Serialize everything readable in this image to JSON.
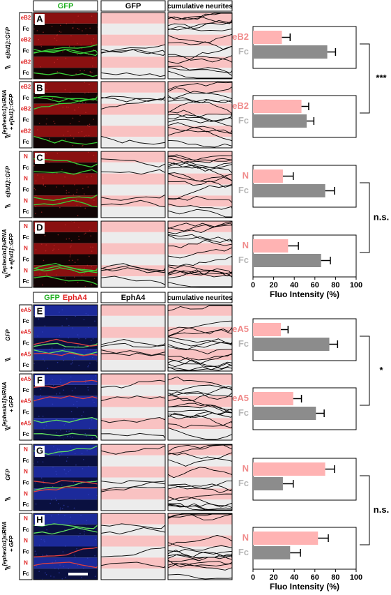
{
  "headers_top": [
    {
      "parts": [
        "GFP"
      ],
      "colors": [
        "#1fae1f"
      ]
    },
    {
      "parts": [
        "GFP"
      ],
      "colors": [
        "#000000"
      ]
    },
    {
      "parts": [
        "cumulative neurites"
      ],
      "colors": [
        "#000000"
      ]
    }
  ],
  "headers_bottom": [
    {
      "parts": [
        "GFP",
        "EphA4"
      ],
      "colors": [
        "#1fae1f",
        "#e02020"
      ]
    },
    {
      "parts": [
        "EphA4"
      ],
      "colors": [
        "#000000"
      ]
    },
    {
      "parts": [
        "cumulative neurites"
      ],
      "colors": [
        "#000000"
      ]
    }
  ],
  "panels": [
    {
      "letter": "A",
      "condition": [
        "e[Isl1]::GFP"
      ],
      "stripes": [
        "eB2",
        "Fc",
        "eB2",
        "Fc",
        "eB2",
        "Fc"
      ]
    },
    {
      "letter": "B",
      "condition": [
        "[ephexin1]siRNA",
        "+ e[Isl1]::GFP"
      ],
      "stripes": [
        "eB2",
        "Fc",
        "eB2",
        "Fc",
        "eB2",
        "Fc"
      ]
    },
    {
      "letter": "C",
      "condition": [
        "e[Isl1]::GFP"
      ],
      "stripes": [
        "N",
        "Fc",
        "N",
        "Fc",
        "N",
        "Fc"
      ]
    },
    {
      "letter": "D",
      "condition": [
        "[ephexin1]siRNA",
        "+ e[Isl1]::GFP"
      ],
      "stripes": [
        "N",
        "Fc",
        "N",
        "Fc",
        "N",
        "Fc"
      ]
    },
    {
      "letter": "E",
      "condition": [
        "GFP"
      ],
      "stripes": [
        "eA5",
        "Fc",
        "eA5",
        "Fc",
        "eA5",
        "Fc"
      ]
    },
    {
      "letter": "F",
      "condition": [
        "[ephexin1]siRNA",
        "+ GFP"
      ],
      "stripes": [
        "eA5",
        "Fc",
        "eA5",
        "Fc",
        "eA5",
        "Fc"
      ]
    },
    {
      "letter": "G",
      "condition": [
        "GFP"
      ],
      "stripes": [
        "N",
        "Fc",
        "N",
        "Fc",
        "N",
        "Fc"
      ]
    },
    {
      "letter": "H",
      "condition": [
        "[ephexin1]siRNA",
        "+ GFP"
      ],
      "stripes": [
        "N",
        "Fc",
        "N",
        "Fc",
        "N",
        "Fc"
      ]
    }
  ],
  "significance": [
    "***",
    "n.s.",
    "*",
    "n.s."
  ],
  "chart_data": [
    {
      "type": "hbar",
      "categories": [
        "eB2",
        "Fc"
      ],
      "values": [
        28,
        72
      ],
      "errors": [
        8,
        8
      ],
      "colors": [
        "#ffb3b3",
        "#8c8c8c"
      ],
      "label_colors": [
        "#f08a8a",
        "#b5b5b5"
      ],
      "xlim": [
        0,
        100
      ]
    },
    {
      "type": "hbar",
      "categories": [
        "eB2",
        "Fc"
      ],
      "values": [
        47,
        52
      ],
      "errors": [
        7,
        7
      ],
      "colors": [
        "#ffb3b3",
        "#8c8c8c"
      ],
      "label_colors": [
        "#f08a8a",
        "#b5b5b5"
      ],
      "xlim": [
        0,
        100
      ]
    },
    {
      "type": "hbar",
      "categories": [
        "N",
        "Fc"
      ],
      "values": [
        29,
        70
      ],
      "errors": [
        10,
        9
      ],
      "colors": [
        "#ffb3b3",
        "#8c8c8c"
      ],
      "label_colors": [
        "#f08a8a",
        "#b5b5b5"
      ],
      "xlim": [
        0,
        100
      ]
    },
    {
      "type": "hbar",
      "categories": [
        "N",
        "Fc"
      ],
      "values": [
        34,
        66
      ],
      "errors": [
        10,
        9
      ],
      "colors": [
        "#ffb3b3",
        "#8c8c8c"
      ],
      "label_colors": [
        "#f08a8a",
        "#b5b5b5"
      ],
      "xlim": [
        0,
        100
      ],
      "xticks": [
        0,
        20,
        40,
        60,
        80,
        100
      ],
      "xlabel": "Fluo Intensity (%)"
    },
    {
      "type": "hbar",
      "categories": [
        "eA5",
        "Fc"
      ],
      "values": [
        27,
        74
      ],
      "errors": [
        7,
        8
      ],
      "colors": [
        "#ffb3b3",
        "#8c8c8c"
      ],
      "label_colors": [
        "#f08a8a",
        "#b5b5b5"
      ],
      "xlim": [
        0,
        100
      ]
    },
    {
      "type": "hbar",
      "categories": [
        "eA5",
        "Fc"
      ],
      "values": [
        39,
        61
      ],
      "errors": [
        8,
        8
      ],
      "colors": [
        "#ffb3b3",
        "#8c8c8c"
      ],
      "label_colors": [
        "#f08a8a",
        "#b5b5b5"
      ],
      "xlim": [
        0,
        100
      ]
    },
    {
      "type": "hbar",
      "categories": [
        "N",
        "Fc"
      ],
      "values": [
        70,
        29
      ],
      "errors": [
        9,
        10
      ],
      "colors": [
        "#ffb3b3",
        "#8c8c8c"
      ],
      "label_colors": [
        "#f08a8a",
        "#b5b5b5"
      ],
      "xlim": [
        0,
        100
      ]
    },
    {
      "type": "hbar",
      "categories": [
        "N",
        "Fc"
      ],
      "values": [
        63,
        36
      ],
      "errors": [
        10,
        10
      ],
      "colors": [
        "#ffb3b3",
        "#8c8c8c"
      ],
      "label_colors": [
        "#f08a8a",
        "#b5b5b5"
      ],
      "xlim": [
        0,
        100
      ],
      "xticks": [
        0,
        20,
        40,
        60,
        80,
        100
      ],
      "xlabel": "Fluo Intensity (%)"
    }
  ]
}
